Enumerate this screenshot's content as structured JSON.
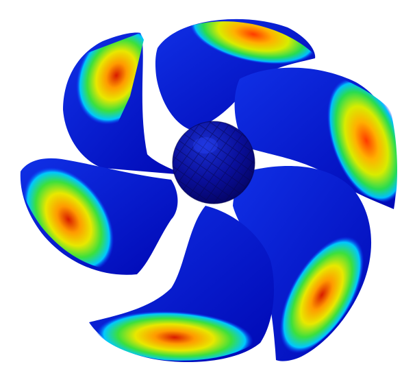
{
  "scene": {
    "subject": "propeller",
    "blade_count": 6,
    "background_color": "#ffffff",
    "colormap": [
      "#0000c8",
      "#0a3cff",
      "#00c8ff",
      "#32e632",
      "#e6e600",
      "#ff9600",
      "#ff2800",
      "#c80000"
    ],
    "base_color": "#0a14d2",
    "hub_color": "#0a0a8c"
  }
}
